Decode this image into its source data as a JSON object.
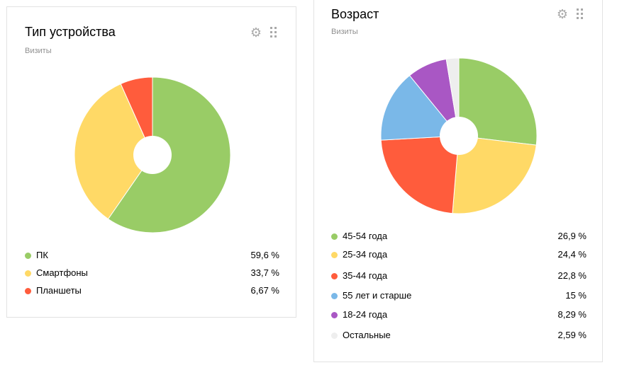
{
  "device": {
    "title": "Тип устройства",
    "subtitle": "Визиты",
    "settings_icon": "gear-icon",
    "drag_icon": "drag-handle-icon",
    "chart_data": {
      "type": "pie",
      "title": "Тип устройства",
      "categories": [
        "ПК",
        "Смартфоны",
        "Планшеты"
      ],
      "values": [
        59.6,
        33.7,
        6.67
      ],
      "colors": [
        "#99cc66",
        "#ffd966",
        "#ff5c3c"
      ]
    },
    "legend": [
      {
        "label": "ПК",
        "value": "59,6 %",
        "color": "#99cc66"
      },
      {
        "label": "Смартфоны",
        "value": "33,7 %",
        "color": "#ffd966"
      },
      {
        "label": "Планшеты",
        "value": "6,67 %",
        "color": "#ff5c3c"
      }
    ]
  },
  "age": {
    "title": "Возраст",
    "subtitle": "Визиты",
    "settings_icon": "gear-icon",
    "drag_icon": "drag-handle-icon",
    "chart_data": {
      "type": "pie",
      "title": "Возраст",
      "categories": [
        "45-54 года",
        "25-34 года",
        "35-44 года",
        "55 лет и старше",
        "18-24 года",
        "Остальные"
      ],
      "values": [
        26.9,
        24.4,
        22.8,
        15,
        8.29,
        2.59
      ],
      "colors": [
        "#99cc66",
        "#ffd966",
        "#ff5c3c",
        "#7ab8e8",
        "#a957c4",
        "#eeeeee"
      ]
    },
    "legend": [
      {
        "label": "45-54 года",
        "value": "26,9 %",
        "color": "#99cc66"
      },
      {
        "label": "25-34 года",
        "value": "24,4 %",
        "color": "#ffd966"
      },
      {
        "label": "35-44 года",
        "value": "22,8 %",
        "color": "#ff5c3c"
      },
      {
        "label": "55 лет и старше",
        "value": "15 %",
        "color": "#7ab8e8"
      },
      {
        "label": "18-24 года",
        "value": "8,29 %",
        "color": "#a957c4"
      },
      {
        "label": "Остальные",
        "value": "2,59 %",
        "color": "#eeeeee"
      }
    ]
  }
}
